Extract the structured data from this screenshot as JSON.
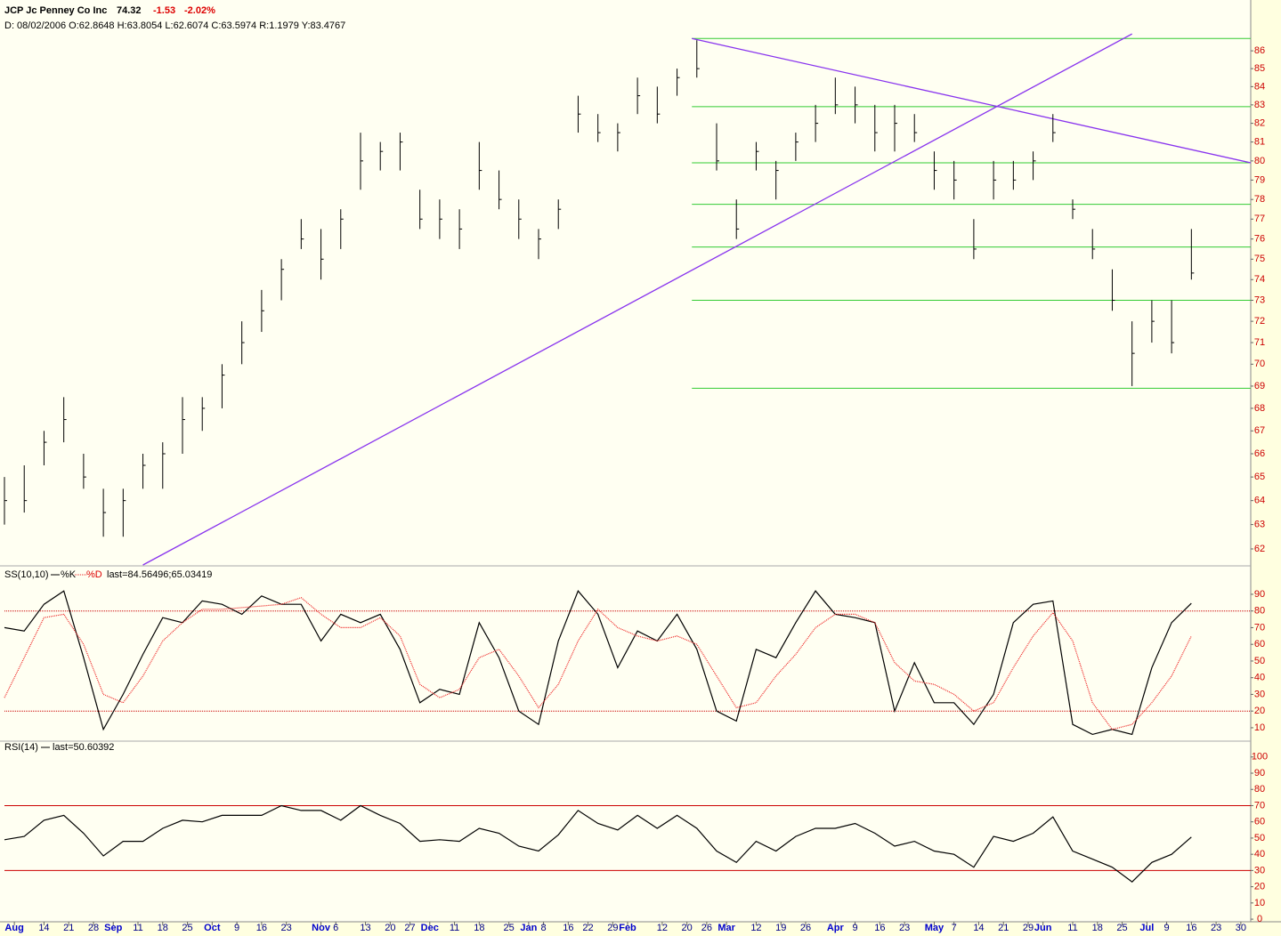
{
  "header": {
    "symbol": "JCP Jc Penney Co Inc",
    "last": "74.32",
    "change": "-1.53",
    "change_pct": "-2.02%",
    "info": "D: 08/02/2006 O:62.8648 H:63.8054 L:62.6074 C:63.5974 R:1.1979 Y:83.4767"
  },
  "x_axis": {
    "xlim": [
      0,
      252
    ],
    "x": [
      0,
      4,
      8,
      12,
      16,
      20,
      24,
      28,
      32,
      36,
      40,
      44,
      48,
      52,
      56,
      60,
      64,
      68,
      72,
      76,
      80,
      84,
      88,
      92,
      96,
      100,
      104,
      108,
      112,
      116,
      120,
      124,
      128,
      132,
      136,
      140,
      144,
      148,
      152,
      156,
      160,
      164,
      168,
      172,
      176,
      180,
      184,
      188,
      192,
      196,
      200,
      204,
      208,
      212,
      216,
      220,
      224,
      228,
      232,
      236,
      240
    ],
    "xticks": [
      {
        "value": 2,
        "label": "Aug"
      },
      {
        "value": 8,
        "label": "14"
      },
      {
        "value": 13,
        "label": "21"
      },
      {
        "value": 18,
        "label": "28"
      },
      {
        "value": 22,
        "label": "Sep"
      },
      {
        "value": 27,
        "label": "11"
      },
      {
        "value": 32,
        "label": "18"
      },
      {
        "value": 37,
        "label": "25"
      },
      {
        "value": 42,
        "label": "Oct"
      },
      {
        "value": 47,
        "label": "9"
      },
      {
        "value": 52,
        "label": "16"
      },
      {
        "value": 57,
        "label": "23"
      },
      {
        "value": 64,
        "label": "Nov"
      },
      {
        "value": 67,
        "label": "6"
      },
      {
        "value": 73,
        "label": "13"
      },
      {
        "value": 78,
        "label": "20"
      },
      {
        "value": 82,
        "label": "27"
      },
      {
        "value": 86,
        "label": "Dec"
      },
      {
        "value": 91,
        "label": "11"
      },
      {
        "value": 96,
        "label": "18"
      },
      {
        "value": 102,
        "label": "25"
      },
      {
        "value": 106,
        "label": "Jan"
      },
      {
        "value": 109,
        "label": "8"
      },
      {
        "value": 114,
        "label": "16"
      },
      {
        "value": 118,
        "label": "22"
      },
      {
        "value": 123,
        "label": "29"
      },
      {
        "value": 126,
        "label": "Feb"
      },
      {
        "value": 133,
        "label": "12"
      },
      {
        "value": 138,
        "label": "20"
      },
      {
        "value": 142,
        "label": "26"
      },
      {
        "value": 146,
        "label": "Mar"
      },
      {
        "value": 152,
        "label": "12"
      },
      {
        "value": 157,
        "label": "19"
      },
      {
        "value": 162,
        "label": "26"
      },
      {
        "value": 168,
        "label": "Apr"
      },
      {
        "value": 172,
        "label": "9"
      },
      {
        "value": 177,
        "label": "16"
      },
      {
        "value": 182,
        "label": "23"
      },
      {
        "value": 188,
        "label": "May"
      },
      {
        "value": 192,
        "label": "7"
      },
      {
        "value": 197,
        "label": "14"
      },
      {
        "value": 202,
        "label": "21"
      },
      {
        "value": 207,
        "label": "29"
      },
      {
        "value": 210,
        "label": "Jun"
      },
      {
        "value": 216,
        "label": "11"
      },
      {
        "value": 221,
        "label": "18"
      },
      {
        "value": 226,
        "label": "25"
      },
      {
        "value": 231,
        "label": "Jul"
      },
      {
        "value": 235,
        "label": "9"
      },
      {
        "value": 240,
        "label": "16"
      },
      {
        "value": 245,
        "label": "23"
      },
      {
        "value": 250,
        "label": "30"
      }
    ]
  },
  "chart_data": [
    {
      "type": "ohlc",
      "color": "#000000",
      "log_scale": true,
      "ylim": [
        61.35,
        88.66
      ],
      "yticks": [
        62,
        63,
        64,
        65,
        66,
        67,
        68,
        69,
        70,
        71,
        72,
        73,
        74,
        75,
        76,
        77,
        78,
        79,
        80,
        81,
        82,
        83,
        84,
        85,
        86
      ],
      "high": [
        65,
        65.5,
        67,
        68.5,
        66,
        64.5,
        64.5,
        66,
        66.5,
        68.5,
        68.5,
        70,
        72,
        73.5,
        75,
        77,
        76.5,
        77.5,
        81.5,
        81,
        81.5,
        78.5,
        78,
        77.5,
        81,
        79.5,
        78,
        76.5,
        78,
        83.5,
        82.5,
        82,
        84.5,
        84,
        85,
        86.6,
        82,
        78,
        81,
        80,
        81.5,
        83,
        84.5,
        84,
        83,
        83,
        82.5,
        80.5,
        80,
        77,
        80,
        80,
        80.5,
        82.5,
        78,
        76.5,
        74.5,
        72,
        73,
        73,
        76.5
      ],
      "low": [
        63,
        63.5,
        65.5,
        66.5,
        64.5,
        62.5,
        62.5,
        64.5,
        64.5,
        66,
        67,
        68,
        70,
        71.5,
        73,
        75.5,
        74,
        75.5,
        78.5,
        79.5,
        79.5,
        76.5,
        76,
        75.5,
        78.5,
        77.5,
        76,
        75,
        76.5,
        81.5,
        81,
        80.5,
        82.5,
        82,
        83.5,
        84.5,
        79.5,
        76,
        79.5,
        78,
        80,
        81,
        82.5,
        82,
        80.5,
        80.5,
        81,
        78.5,
        78,
        75,
        78,
        78.5,
        79,
        81,
        77,
        75,
        72.5,
        69,
        71,
        70.5,
        74
      ],
      "close": [
        64,
        64,
        66.5,
        67.5,
        65,
        63.5,
        64,
        65.5,
        66,
        67.5,
        68,
        69.5,
        71,
        72.5,
        74.5,
        76,
        75,
        77,
        80,
        80.5,
        81,
        77,
        77,
        76.5,
        79.5,
        78,
        77,
        76,
        77.5,
        82.5,
        81.5,
        81.5,
        83.5,
        82.5,
        84.5,
        85,
        80,
        76.5,
        80.5,
        79.5,
        81,
        82,
        83,
        83,
        81.5,
        82,
        81.5,
        79.5,
        79,
        75.5,
        79,
        79,
        80,
        81.5,
        77.5,
        75.5,
        73,
        70.5,
        72,
        71,
        74.32
      ],
      "levels": {
        "color": "#33cc33",
        "values": [
          86.7,
          82.9,
          79.9,
          77.75,
          75.6,
          73.0,
          68.9
        ],
        "x_start": 139
      },
      "trendlines": {
        "color": "#8833ee",
        "lines": [
          {
            "x": [
              28,
              228
            ],
            "y": [
              61.35,
              86.96
            ]
          },
          {
            "x": [
              139,
              252
            ],
            "y": [
              86.7,
              79.9
            ]
          }
        ]
      }
    },
    {
      "type": "line",
      "title": "SS(10,10)",
      "annotation": "last=84.56496;65.03419",
      "ylim": [
        2.5,
        106.5
      ],
      "yticks": [
        10,
        20,
        30,
        40,
        50,
        60,
        70,
        80,
        90
      ],
      "reference_lines": {
        "values": [
          80,
          20
        ],
        "color": "#cc0000",
        "dash": true
      },
      "series": [
        {
          "name": "%K",
          "color": "#000000",
          "dash": false,
          "values": [
            70,
            68,
            84,
            92,
            52,
            9,
            30,
            54,
            76,
            73,
            86,
            84,
            78,
            89,
            84,
            84,
            62,
            78,
            73,
            78,
            57,
            25,
            33,
            30,
            73,
            52,
            20,
            12,
            62,
            92,
            78,
            46,
            68,
            62,
            78,
            57,
            20,
            14,
            57,
            52,
            73,
            92,
            78,
            76,
            73,
            20,
            49,
            25,
            25,
            12,
            30,
            73,
            84,
            86,
            12,
            6,
            9,
            6,
            46,
            73,
            84.56
          ]
        },
        {
          "name": "%D",
          "color": "#ee2222",
          "dash": true,
          "values": [
            28,
            52,
            76,
            78,
            60,
            30,
            25,
            41,
            62,
            73,
            81,
            81,
            82,
            83,
            84,
            88,
            78,
            70,
            70,
            76,
            65,
            36,
            28,
            33,
            52,
            57,
            41,
            22,
            36,
            62,
            81,
            70,
            65,
            62,
            65,
            60,
            41,
            22,
            25,
            41,
            54,
            70,
            78,
            78,
            73,
            49,
            38,
            36,
            30,
            20,
            25,
            46,
            65,
            79,
            62,
            25,
            9,
            12,
            25,
            41,
            65.03
          ]
        }
      ]
    },
    {
      "type": "line",
      "title": "RSI(14)",
      "annotation": "last=50.60392",
      "ylim": [
        -1.6,
        109.2
      ],
      "yticks": [
        0,
        10,
        20,
        30,
        40,
        50,
        60,
        70,
        80,
        90,
        100
      ],
      "reference_lines": {
        "values": [
          70,
          30
        ],
        "color": "#cc0000",
        "dash": false
      },
      "series": [
        {
          "name": "RSI",
          "color": "#000000",
          "dash": false,
          "values": [
            49,
            51,
            61,
            64,
            53,
            39,
            48,
            48,
            56,
            61,
            60,
            64,
            64,
            64,
            70,
            67,
            67,
            61,
            70,
            64,
            59,
            48,
            49,
            48,
            56,
            53,
            45,
            42,
            52,
            67,
            59,
            55,
            64,
            56,
            64,
            56,
            42,
            35,
            48,
            42,
            51,
            56,
            56,
            59,
            53,
            45,
            48,
            42,
            40,
            32,
            51,
            48,
            53,
            63,
            42,
            37,
            32,
            23,
            35,
            40,
            50.6
          ]
        }
      ]
    }
  ]
}
